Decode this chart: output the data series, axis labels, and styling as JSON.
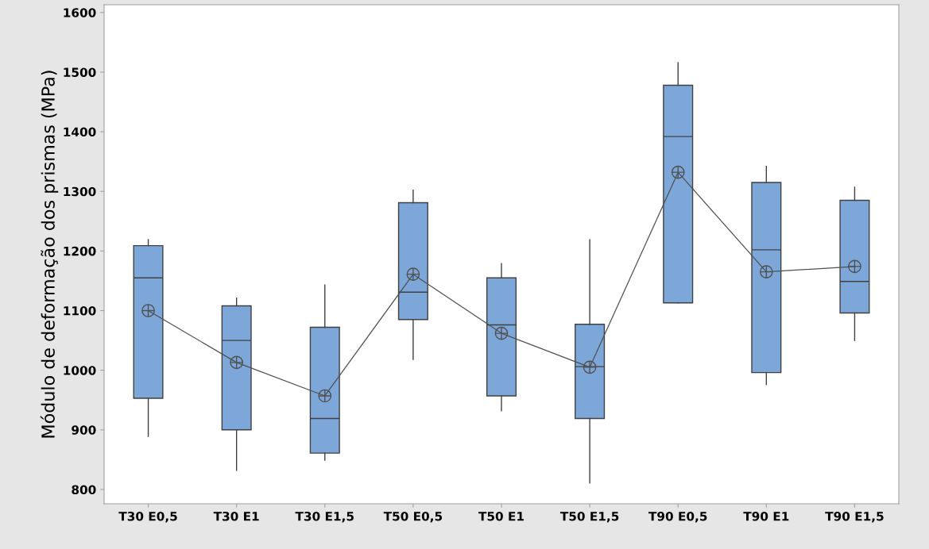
{
  "chart_data": {
    "type": "box",
    "ylabel": "Módulo de deformação dos prismas (MPa)",
    "categories": [
      "T30 E0,5",
      "T30 E1",
      "T30 E1,5",
      "T50 E0,5",
      "T50 E1",
      "T50 E1,5",
      "T90 E0,5",
      "T90 E1",
      "T90 E1,5"
    ],
    "ylim": [
      776,
      1613
    ],
    "yticks": [
      800,
      900,
      1000,
      1100,
      1200,
      1300,
      1400,
      1500,
      1600
    ],
    "grid": false,
    "legend": false,
    "series": [
      {
        "color": "#7da7d9",
        "boxes": [
          {
            "low": 889,
            "q1": 953,
            "median": 1155,
            "q3": 1209,
            "high": 1219
          },
          {
            "low": 832,
            "q1": 900,
            "median": 1050,
            "q3": 1108,
            "high": 1121
          },
          {
            "low": 849,
            "q1": 861,
            "median": 919,
            "q3": 1072,
            "high": 1143
          },
          {
            "low": 1018,
            "q1": 1085,
            "median": 1131,
            "q3": 1281,
            "high": 1302
          },
          {
            "low": 932,
            "q1": 957,
            "median": 1076,
            "q3": 1155,
            "high": 1179
          },
          {
            "low": 811,
            "q1": 919,
            "median": 1006,
            "q3": 1077,
            "high": 1219
          },
          {
            "low": 1113,
            "q1": 1113,
            "median": 1392,
            "q3": 1478,
            "high": 1516
          },
          {
            "low": 976,
            "q1": 996,
            "median": 1202,
            "q3": 1315,
            "high": 1342
          },
          {
            "low": 1050,
            "q1": 1096,
            "median": 1149,
            "q3": 1285,
            "high": 1307
          }
        ]
      },
      {
        "type": "line",
        "color": "#505050",
        "marker": "circle",
        "x": [
          "T30 E0,5",
          "T30 E1",
          "T30 E1,5",
          "T50 E0,5",
          "T50 E1",
          "T50 E1,5",
          "T90 E0,5",
          "T90 E1",
          "T90 E1,5"
        ],
        "values": [
          1100,
          1013,
          957,
          1161,
          1062,
          1005,
          1332,
          1165,
          1174
        ]
      }
    ]
  }
}
